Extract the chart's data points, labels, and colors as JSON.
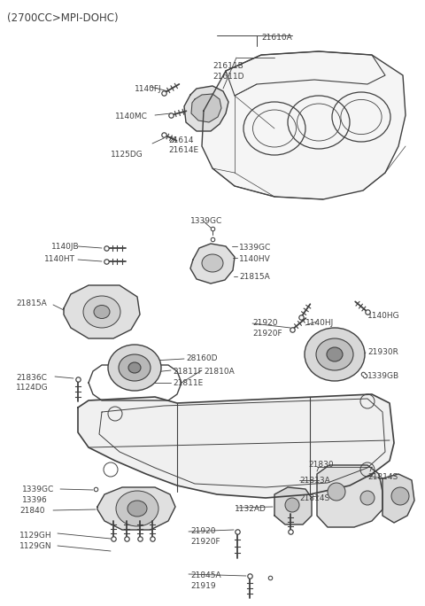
{
  "bg_color": "#ffffff",
  "line_color": "#404040",
  "text_color": "#404040",
  "title": "(2700CC>MPI-DOHC)",
  "fig_w": 4.8,
  "fig_h": 6.84,
  "dpi": 100,
  "xlim": [
    0,
    480
  ],
  "ylim": [
    0,
    684
  ]
}
